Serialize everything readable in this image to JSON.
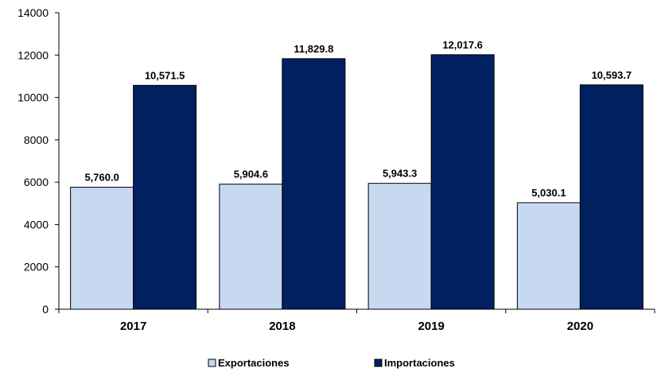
{
  "chart_data": {
    "type": "bar",
    "categories": [
      "2017",
      "2018",
      "2019",
      "2020"
    ],
    "series": [
      {
        "name": "Exportaciones",
        "values": [
          5760.0,
          5904.6,
          5943.3,
          5030.1
        ],
        "labels": [
          "5,760.0",
          "5,904.6",
          "5,943.3",
          "5,030.1"
        ],
        "color": "#c6d9f1"
      },
      {
        "name": "Importaciones",
        "values": [
          10571.5,
          11829.8,
          12017.6,
          10593.7
        ],
        "labels": [
          "10,571.5",
          "11,829.8",
          "12,017.6",
          "10,593.7"
        ],
        "color": "#002060"
      }
    ],
    "ylim": [
      0,
      14000
    ],
    "yticks": [
      0,
      2000,
      4000,
      6000,
      8000,
      10000,
      12000,
      14000
    ],
    "grid": false,
    "legend_position": "bottom"
  }
}
